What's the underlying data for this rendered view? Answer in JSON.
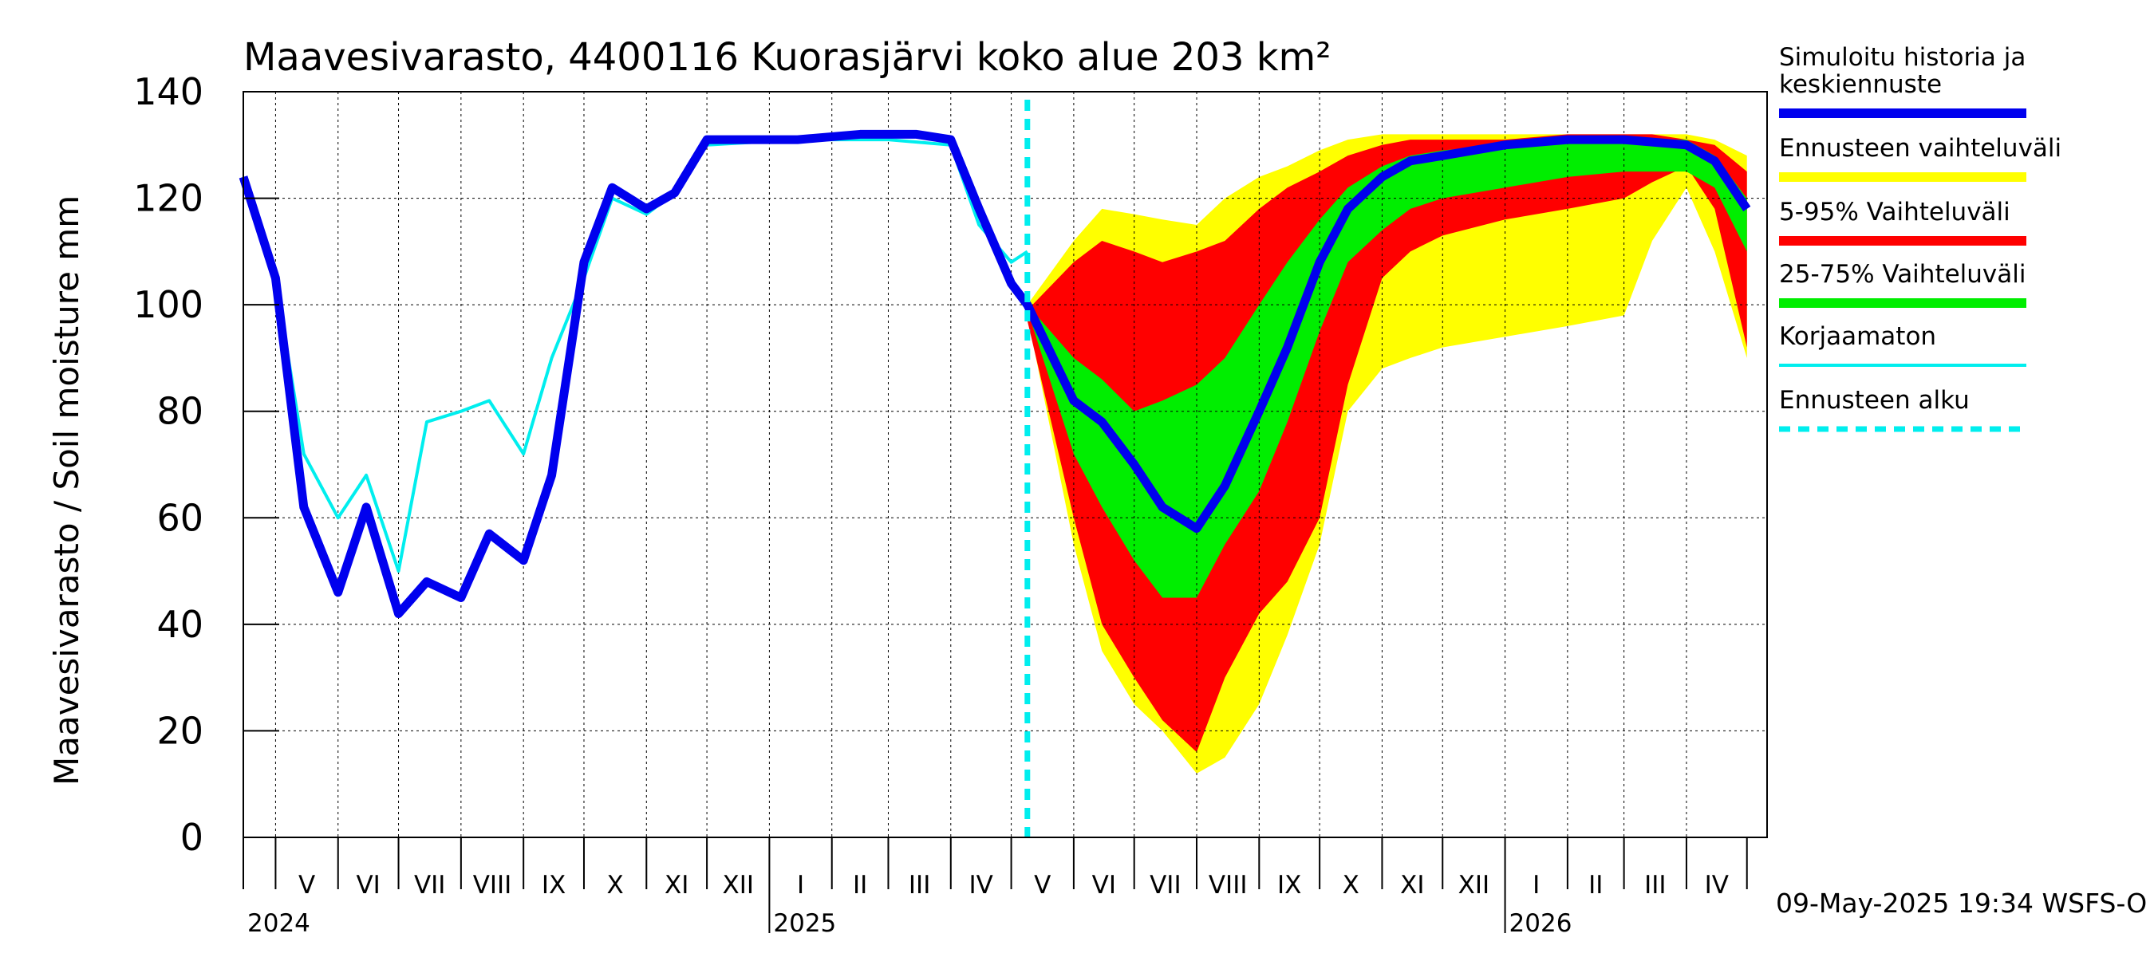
{
  "chart_data": {
    "type": "area",
    "title": "Maavesivarasto, 4400116 Kuorasjärvi koko alue 203 km²",
    "ylabel": "Maavesivarasto / Soil moisture   mm",
    "ylim": [
      0,
      140
    ],
    "yticks": [
      0,
      20,
      40,
      60,
      80,
      100,
      120,
      140
    ],
    "grid": true,
    "legend_position": "right",
    "forecast_start": "2025-05-09",
    "footer": "09-May-2025 19:34 WSFS-O",
    "months": [
      "V",
      "VI",
      "VII",
      "VIII",
      "IX",
      "X",
      "XI",
      "XII",
      "I",
      "II",
      "III",
      "IV",
      "V",
      "VI",
      "VII",
      "VIII",
      "IX",
      "X",
      "XI",
      "XII",
      "I",
      "II",
      "III",
      "IV"
    ],
    "years": [
      "2024",
      "2025",
      "2026"
    ],
    "legend": [
      {
        "label": "Simuloitu historia ja keskiennuste",
        "color": "#0000ee",
        "style": "solid"
      },
      {
        "label": "Ennusteen vaihteluväli",
        "color": "#ffff00",
        "style": "solid"
      },
      {
        "label": "5-95% Vaihteluväli",
        "color": "#ff0000",
        "style": "solid"
      },
      {
        "label": "25-75% Vaihteluväli",
        "color": "#00ee00",
        "style": "solid"
      },
      {
        "label": "Korjaamaton",
        "color": "#00eeee",
        "style": "solid"
      },
      {
        "label": "Ennusteen alku",
        "color": "#00eeee",
        "style": "dashed"
      }
    ],
    "series": [
      {
        "name": "Simuloitu historia ja keskiennuste",
        "x": [
          "2024-04-15",
          "2024-05-01",
          "2024-05-15",
          "2024-06-01",
          "2024-06-15",
          "2024-07-01",
          "2024-07-15",
          "2024-08-01",
          "2024-08-15",
          "2024-09-01",
          "2024-09-15",
          "2024-10-01",
          "2024-10-15",
          "2024-11-01",
          "2024-11-15",
          "2024-12-01",
          "2024-12-15",
          "2025-01-15",
          "2025-02-15",
          "2025-03-15",
          "2025-04-01",
          "2025-04-15",
          "2025-05-01",
          "2025-05-09",
          "2025-06-01",
          "2025-06-15",
          "2025-07-01",
          "2025-07-15",
          "2025-08-01",
          "2025-08-15",
          "2025-09-01",
          "2025-09-15",
          "2025-10-01",
          "2025-10-15",
          "2025-11-01",
          "2025-11-15",
          "2025-12-01",
          "2026-01-01",
          "2026-02-01",
          "2026-03-01",
          "2026-04-01",
          "2026-04-15",
          "2026-05-01"
        ],
        "values": [
          124,
          105,
          62,
          46,
          62,
          42,
          48,
          45,
          57,
          52,
          68,
          108,
          122,
          118,
          121,
          131,
          131,
          131,
          132,
          132,
          131,
          118,
          104,
          100,
          82,
          78,
          70,
          62,
          58,
          66,
          80,
          92,
          108,
          118,
          124,
          127,
          128,
          130,
          131,
          131,
          130,
          127,
          118
        ]
      },
      {
        "name": "Korjaamaton",
        "x": [
          "2024-04-15",
          "2024-05-01",
          "2024-05-15",
          "2024-06-01",
          "2024-06-15",
          "2024-07-01",
          "2024-07-15",
          "2024-08-01",
          "2024-08-15",
          "2024-09-01",
          "2024-09-15",
          "2024-10-01",
          "2024-10-15",
          "2024-11-01",
          "2024-11-15",
          "2024-12-01",
          "2025-01-15",
          "2025-03-01",
          "2025-04-01",
          "2025-04-15",
          "2025-05-01",
          "2025-05-09"
        ],
        "values": [
          124,
          105,
          72,
          60,
          68,
          50,
          78,
          80,
          82,
          72,
          90,
          105,
          120,
          117,
          121,
          130,
          131,
          131,
          130,
          115,
          108,
          110
        ]
      },
      {
        "name": "Ennusteen vaihteluväli",
        "x": [
          "2025-05-09",
          "2025-06-01",
          "2025-06-15",
          "2025-07-01",
          "2025-07-15",
          "2025-08-01",
          "2025-08-15",
          "2025-09-01",
          "2025-09-15",
          "2025-10-01",
          "2025-10-15",
          "2025-11-01",
          "2025-11-15",
          "2025-12-01",
          "2026-01-01",
          "2026-02-01",
          "2026-03-01",
          "2026-03-15",
          "2026-04-01",
          "2026-04-15",
          "2026-05-01"
        ],
        "upper": [
          100,
          112,
          118,
          117,
          116,
          115,
          120,
          124,
          126,
          129,
          131,
          132,
          132,
          132,
          132,
          132,
          132,
          132,
          132,
          131,
          128
        ],
        "lower": [
          98,
          55,
          35,
          25,
          20,
          12,
          15,
          25,
          38,
          55,
          80,
          88,
          90,
          92,
          94,
          96,
          98,
          112,
          122,
          110,
          90
        ]
      },
      {
        "name": "5-95% Vaihteluväli",
        "x": [
          "2025-05-09",
          "2025-06-01",
          "2025-06-15",
          "2025-07-01",
          "2025-07-15",
          "2025-08-01",
          "2025-08-15",
          "2025-09-01",
          "2025-09-15",
          "2025-10-01",
          "2025-10-15",
          "2025-11-01",
          "2025-11-15",
          "2025-12-01",
          "2026-01-01",
          "2026-02-01",
          "2026-03-01",
          "2026-03-15",
          "2026-04-01",
          "2026-04-15",
          "2026-05-01"
        ],
        "upper": [
          99,
          108,
          112,
          110,
          108,
          110,
          112,
          118,
          122,
          125,
          128,
          130,
          131,
          131,
          131,
          132,
          132,
          132,
          131,
          130,
          125
        ],
        "lower": [
          97,
          60,
          40,
          30,
          22,
          16,
          30,
          42,
          48,
          60,
          85,
          105,
          110,
          113,
          116,
          118,
          120,
          123,
          126,
          118,
          92
        ]
      },
      {
        "name": "25-75% Vaihteluväli",
        "x": [
          "2025-05-09",
          "2025-06-01",
          "2025-06-15",
          "2025-07-01",
          "2025-07-15",
          "2025-08-01",
          "2025-08-15",
          "2025-09-01",
          "2025-09-15",
          "2025-10-01",
          "2025-10-15",
          "2025-11-01",
          "2025-11-15",
          "2025-12-01",
          "2026-01-01",
          "2026-02-01",
          "2026-03-01",
          "2026-04-01",
          "2026-04-15",
          "2026-05-01"
        ],
        "upper": [
          100,
          90,
          86,
          80,
          82,
          85,
          90,
          100,
          108,
          116,
          122,
          126,
          128,
          129,
          130,
          131,
          131,
          131,
          128,
          120
        ],
        "lower": [
          99,
          72,
          62,
          52,
          45,
          45,
          55,
          65,
          78,
          95,
          108,
          114,
          118,
          120,
          122,
          124,
          125,
          125,
          122,
          110
        ]
      }
    ]
  }
}
